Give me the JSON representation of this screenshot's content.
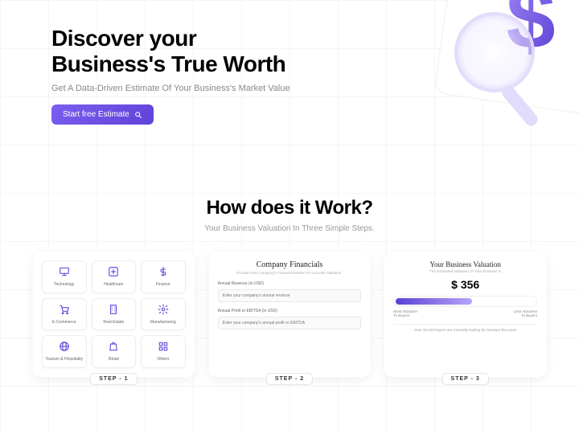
{
  "colors": {
    "accent": "#6a4de0",
    "accent_light": "#9f87f5",
    "text_dark": "#000000",
    "text_muted": "#888888",
    "bg": "#ffffff"
  },
  "hero": {
    "headline_l1": "Discover your",
    "headline_l2": "Business's True Worth",
    "subhead": "Get A Data-Driven Estimate Of Your Business's Market Value",
    "cta_label": "Start free Estimate"
  },
  "how": {
    "title": "How does it Work?",
    "subtitle": "Your Business Valuation In Three Simple Steps."
  },
  "steps": [
    {
      "label": "STEP - 1"
    },
    {
      "label": "STEP - 2"
    },
    {
      "label": "STEP - 3"
    }
  ],
  "categories": [
    {
      "name": "Technology",
      "icon": "monitor"
    },
    {
      "name": "Healthcare",
      "icon": "plus"
    },
    {
      "name": "Finance",
      "icon": "dollar"
    },
    {
      "name": "E-Commerce",
      "icon": "cart"
    },
    {
      "name": "Real Estate",
      "icon": "building"
    },
    {
      "name": "Manufacturing",
      "icon": "gear"
    },
    {
      "name": "Tourism & Hospitality",
      "icon": "globe"
    },
    {
      "name": "Retail",
      "icon": "bag"
    },
    {
      "name": "Others",
      "icon": "grid"
    }
  ],
  "financials": {
    "title": "Company Financials",
    "subtitle": "Provide Your Company's Financial Details For Accurate Valuation.",
    "field1_label": "Annual Revenue (in USD)",
    "field1_placeholder": "Enter your company's annual revenue",
    "field2_label": "Annual Profit or EBITDA (in USD)",
    "field2_placeholder": "Enter your company's annual profit or EBITDA"
  },
  "valuation": {
    "title": "Your Business Valuation",
    "subtitle": "The Estimated Valuation Of Your Business Is",
    "amount": "$ 356",
    "gauge": {
      "fill_percent": 55,
      "fill_color_left": "#5a3fd6",
      "fill_color_right": "#b7a5f7",
      "left_label_l1": "Most Attractive",
      "left_label_l2": "To Buyers",
      "right_label_l1": "Less Attractive",
      "right_label_l2": "To Buyers"
    },
    "footer": "Over 50,245 buyers are Currently looking for Startups like yours"
  }
}
